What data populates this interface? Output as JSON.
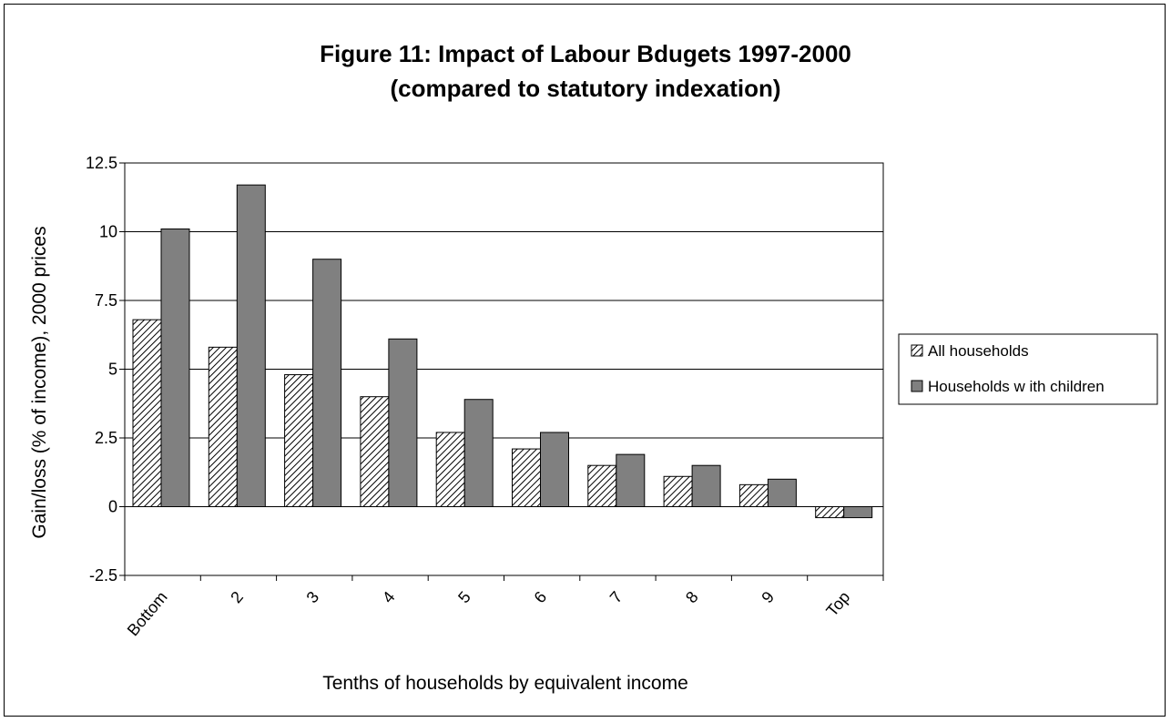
{
  "chart_data": {
    "type": "bar",
    "title_line1": "Figure 11: Impact of Labour Bdugets 1997-2000",
    "title_line2": "(compared to statutory indexation)",
    "xlabel": "Tenths of households by equivalent income",
    "ylabel": "Gain/loss (% of income), 2000 prices",
    "categories": [
      "Bottom",
      "2",
      "3",
      "4",
      "5",
      "6",
      "7",
      "8",
      "9",
      "Top"
    ],
    "ylim": [
      -2.5,
      12.5
    ],
    "yticks": [
      "12.5",
      "10",
      "7.5",
      "5",
      "2.5",
      "0",
      "-2.5"
    ],
    "ytick_values": [
      12.5,
      10,
      7.5,
      5,
      2.5,
      0,
      -2.5
    ],
    "grid": "horizontal",
    "legend_position": "right",
    "series": [
      {
        "name": "All households",
        "pattern": "diagonal-hatch",
        "color": "#000000",
        "values": [
          6.8,
          5.8,
          4.8,
          4.0,
          2.7,
          2.1,
          1.5,
          1.1,
          0.8,
          -0.4
        ]
      },
      {
        "name": "Households w ith children",
        "pattern": "solid",
        "color": "#808080",
        "values": [
          10.1,
          11.7,
          9.0,
          6.1,
          3.9,
          2.7,
          1.9,
          1.5,
          1.0,
          -0.4
        ]
      }
    ]
  }
}
